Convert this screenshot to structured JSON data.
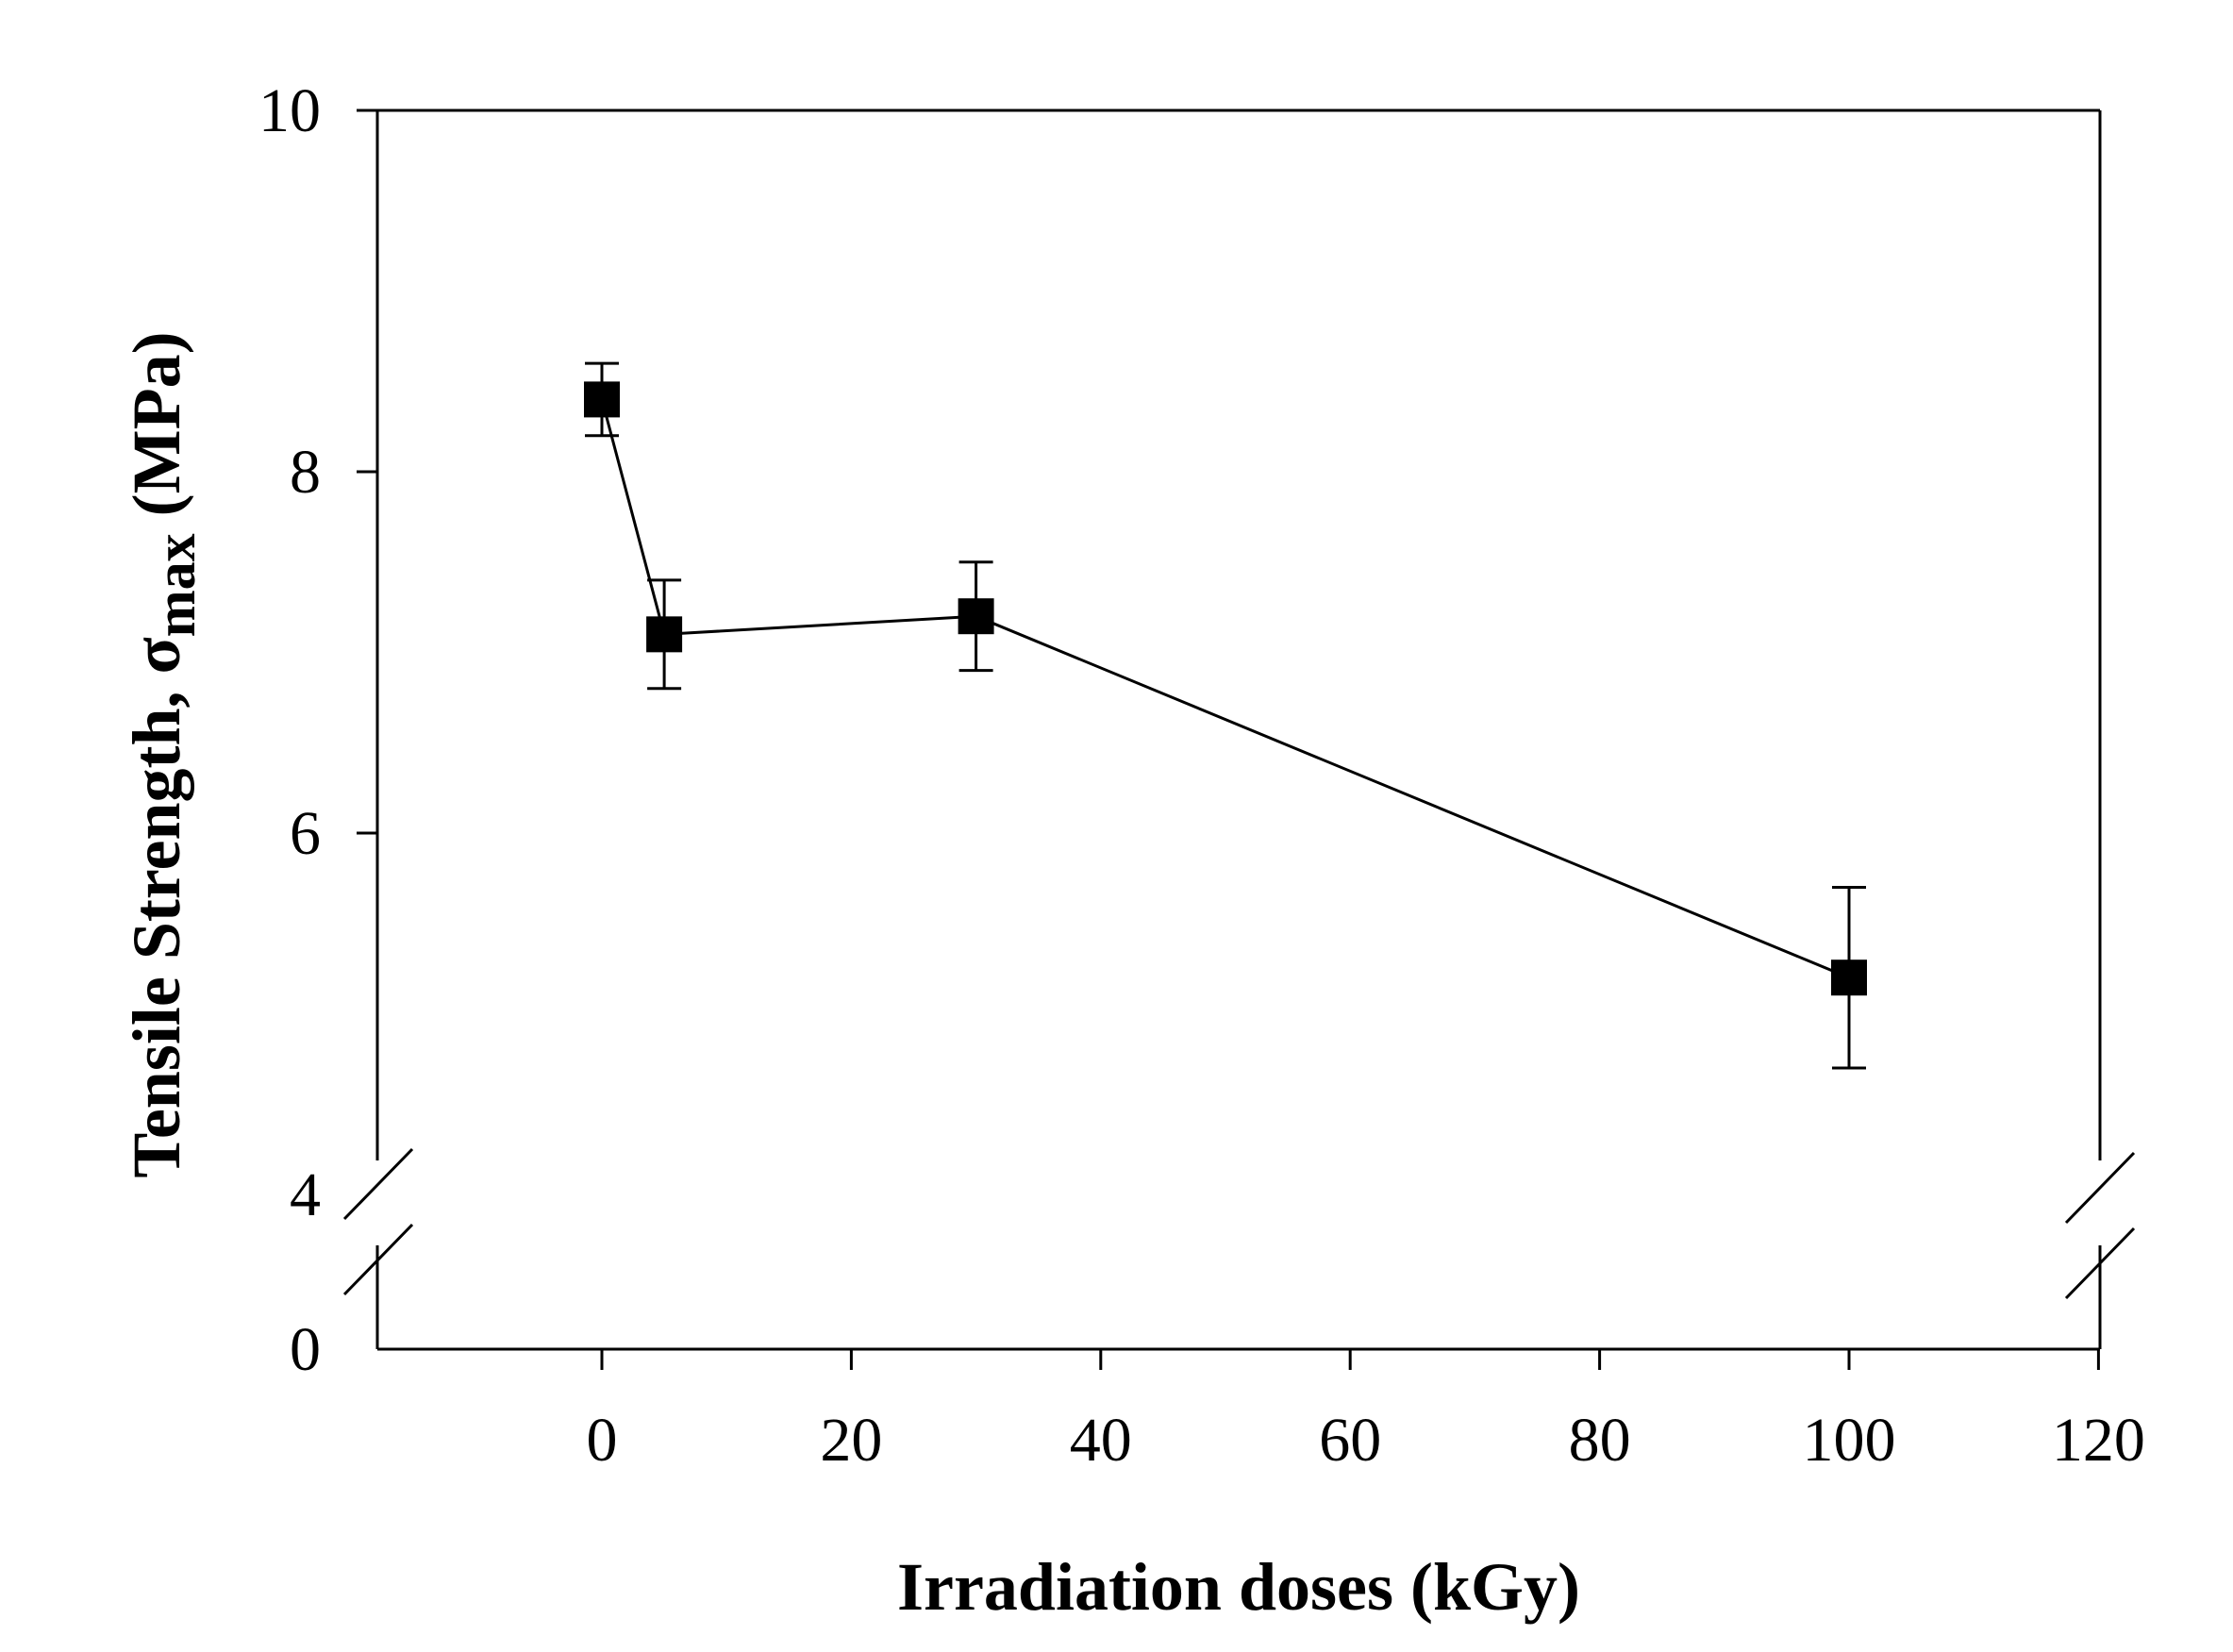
{
  "chart_data": {
    "type": "line",
    "title": "",
    "xlabel": "Irradiation doses (kGy)",
    "ylabel_main": "Tensile Strength, σ",
    "ylabel_sub": "max",
    "ylabel_unit": " (MPa)",
    "xlim": [
      -18,
      120
    ],
    "ylim_upper": [
      4,
      10
    ],
    "ylim_lower": [
      0,
      4
    ],
    "axis_break": true,
    "grid": false,
    "x_ticks": [
      0,
      20,
      40,
      60,
      80,
      100,
      120
    ],
    "x_tick_labels": [
      "0",
      "20",
      "40",
      "60",
      "80",
      "100",
      "120"
    ],
    "y_ticks": [
      0,
      4,
      6,
      8,
      10
    ],
    "y_tick_labels": [
      "0",
      "4",
      "6",
      "8",
      "10"
    ],
    "series": [
      {
        "name": "Tensile Strength",
        "marker": "square",
        "color": "#000000",
        "x": [
          0,
          5,
          30,
          100
        ],
        "y": [
          8.4,
          7.1,
          7.2,
          5.2
        ],
        "error": [
          0.2,
          0.3,
          0.3,
          0.5
        ]
      }
    ]
  }
}
